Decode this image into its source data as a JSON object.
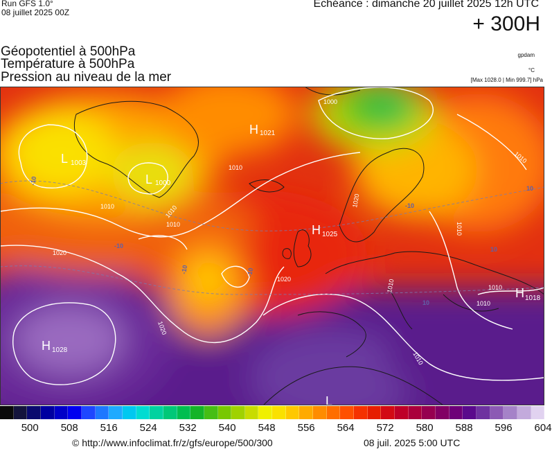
{
  "header": {
    "run_label": "Run GFS 1.0°",
    "run_date": "08 juillet 2025 00Z",
    "echeance": "Echéance : dimanche 20 juillet 2025 12h UTC",
    "horizon": "+ 300H",
    "titles": [
      "Géopotentiel à 500hPa",
      "Température à 500hPa",
      "Pression au niveau de la mer"
    ],
    "unit_gpdam": "gpdam",
    "unit_celsius": "°C",
    "pressure_range": "[Max 1028.0 | Min 999.7] hPa"
  },
  "map": {
    "pressure_centers": [
      {
        "type": "H",
        "value": "1021"
      },
      {
        "type": "L",
        "value": "1003"
      },
      {
        "type": "L",
        "value": "1000"
      },
      {
        "type": "H",
        "value": "1025"
      },
      {
        "type": "H",
        "value": "1028"
      },
      {
        "type": "H",
        "value": "1018"
      },
      {
        "type": "L",
        "value": ""
      }
    ],
    "isobar_labels": [
      "1000",
      "1010",
      "1010",
      "1010",
      "1010",
      "1010",
      "1010",
      "1010",
      "1020",
      "1020",
      "1020",
      "1020",
      "1010",
      "1010",
      "1010"
    ],
    "isotherm_labels": [
      "-10",
      "-10",
      "-10",
      "-10",
      "-10",
      "10",
      "10",
      "10"
    ]
  },
  "colorbar": {
    "colors": [
      "#0a0a0a",
      "#14143c",
      "#0a0a6e",
      "#0000a0",
      "#0000c8",
      "#0000f0",
      "#1e46ff",
      "#1e78ff",
      "#1eaaff",
      "#00c8f0",
      "#00dcd2",
      "#00d2a0",
      "#00c878",
      "#00be50",
      "#14b428",
      "#46be14",
      "#78c800",
      "#a0d200",
      "#c8dc00",
      "#f0f000",
      "#fae100",
      "#ffc800",
      "#ffaa00",
      "#ff8c00",
      "#ff6e00",
      "#ff5000",
      "#f53200",
      "#e61e00",
      "#d20a14",
      "#be0028",
      "#aa003c",
      "#960050",
      "#820064",
      "#6e0078",
      "#5a0a8c",
      "#6e32a0",
      "#8c5ab4",
      "#a582c8",
      "#c3aadc",
      "#e1d2f0"
    ],
    "ticks": [
      "500",
      "508",
      "516",
      "524",
      "532",
      "540",
      "548",
      "556",
      "564",
      "572",
      "580",
      "588",
      "596",
      "604"
    ]
  },
  "footer": {
    "url": "© http://www.infoclimat.fr/z/gfs/europe/500/300",
    "timestamp": "08 juil. 2025  5:00 UTC"
  }
}
